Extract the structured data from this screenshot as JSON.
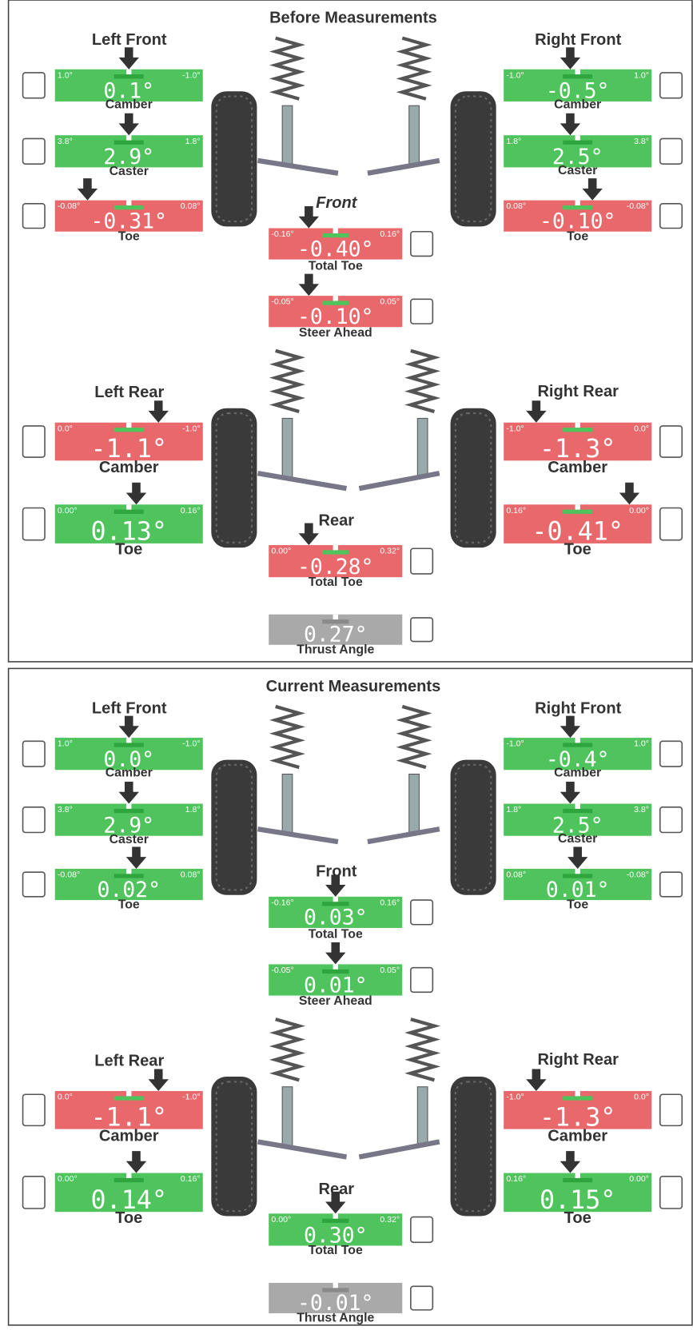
{
  "panels": [
    {
      "title": "Before Measurements",
      "headings": [
        "Left Front",
        "Right Front",
        "Front",
        "Left Rear",
        "Right Rear",
        "Rear"
      ],
      "gauges": [
        {
          "name": "Camber",
          "min": "1.0°",
          "max": "-1.0°",
          "value": "0.1°",
          "color": "#4fc35c"
        },
        {
          "name": "Caster",
          "min": "3.8°",
          "max": "1.8°",
          "value": "2.9°",
          "color": "#4fc35c"
        },
        {
          "name": "Toe",
          "min": "-0.08°",
          "max": "0.08°",
          "value": "-0.31°",
          "color": "#e8686b"
        },
        {
          "name": "Camber",
          "min": "-1.0°",
          "max": "1.0°",
          "value": "-0.5°",
          "color": "#4fc35c"
        },
        {
          "name": "Caster",
          "min": "1.8°",
          "max": "3.8°",
          "value": "2.5°",
          "color": "#4fc35c"
        },
        {
          "name": "Toe",
          "min": "0.08°",
          "max": "-0.08°",
          "value": "-0.10°",
          "color": "#e8686b"
        },
        {
          "name": "Total Toe",
          "min": "-0.16°",
          "max": "0.16°",
          "value": "-0.40°",
          "color": "#e8686b"
        },
        {
          "name": "Steer Ahead",
          "min": "-0.05°",
          "max": "0.05°",
          "value": "-0.10°",
          "color": "#e8686b"
        },
        {
          "name": "Camber",
          "min": "0.0°",
          "max": "-1.0°",
          "value": "-1.1°",
          "color": "#e8686b"
        },
        {
          "name": "Toe",
          "min": "0.00°",
          "max": "0.16°",
          "value": "0.13°",
          "color": "#4fc35c"
        },
        {
          "name": "Camber",
          "min": "-1.0°",
          "max": "0.0°",
          "value": "-1.3°",
          "color": "#e8686b"
        },
        {
          "name": "Toe",
          "min": "0.16°",
          "max": "0.00°",
          "value": "-0.41°",
          "color": "#e8686b"
        },
        {
          "name": "Total Toe",
          "min": "0.00°",
          "max": "0.32°",
          "value": "-0.28°",
          "color": "#e8686b"
        },
        {
          "name": "Thrust Angle",
          "value": "0.27°",
          "color": "#a9a9a9"
        }
      ]
    },
    {
      "title": "Current Measurements",
      "headings": [
        "Left Front",
        "Right Front",
        "Front",
        "Left Rear",
        "Right Rear",
        "Rear"
      ],
      "gauges": [
        {
          "name": "Camber",
          "min": "1.0°",
          "max": "-1.0°",
          "value": "0.0°",
          "color": "#4fc35c"
        },
        {
          "name": "Caster",
          "min": "3.8°",
          "max": "1.8°",
          "value": "2.9°",
          "color": "#4fc35c"
        },
        {
          "name": "Toe",
          "min": "-0.08°",
          "max": "0.08°",
          "value": "0.02°",
          "color": "#4fc35c"
        },
        {
          "name": "Camber",
          "min": "-1.0°",
          "max": "1.0°",
          "value": "-0.4°",
          "color": "#4fc35c"
        },
        {
          "name": "Caster",
          "min": "1.8°",
          "max": "3.8°",
          "value": "2.5°",
          "color": "#4fc35c"
        },
        {
          "name": "Toe",
          "min": "0.08°",
          "max": "-0.08°",
          "value": "0.01°",
          "color": "#4fc35c"
        },
        {
          "name": "Total Toe",
          "min": "-0.16°",
          "max": "0.16°",
          "value": "0.03°",
          "color": "#4fc35c"
        },
        {
          "name": "Steer Ahead",
          "min": "-0.05°",
          "max": "0.05°",
          "value": "0.01°",
          "color": "#4fc35c"
        },
        {
          "name": "Camber",
          "min": "0.0°",
          "max": "-1.0°",
          "value": "-1.1°",
          "color": "#e8686b"
        },
        {
          "name": "Toe",
          "min": "0.00°",
          "max": "0.16°",
          "value": "0.14°",
          "color": "#4fc35c"
        },
        {
          "name": "Camber",
          "min": "-1.0°",
          "max": "0.0°",
          "value": "-1.3°",
          "color": "#e8686b"
        },
        {
          "name": "Toe",
          "min": "0.16°",
          "max": "0.00°",
          "value": "0.15°",
          "color": "#4fc35c"
        },
        {
          "name": "Total Toe",
          "min": "0.00°",
          "max": "0.32°",
          "value": "0.30°",
          "color": "#4fc35c"
        },
        {
          "name": "Thrust Angle",
          "value": "-0.01°",
          "color": "#a9a9a9"
        }
      ]
    }
  ]
}
